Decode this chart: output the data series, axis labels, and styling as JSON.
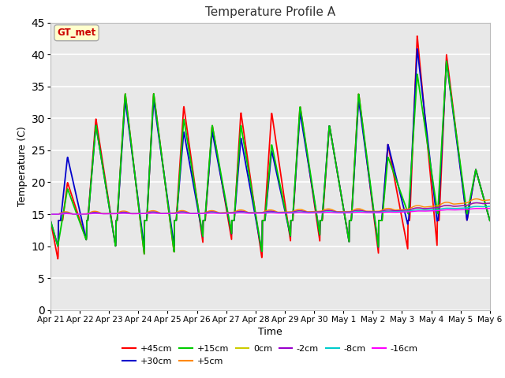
{
  "title": "Temperature Profile A",
  "xlabel": "Time",
  "ylabel": "Temperature (C)",
  "ylim": [
    0,
    45
  ],
  "yticks": [
    0,
    5,
    10,
    15,
    20,
    25,
    30,
    35,
    40,
    45
  ],
  "annotation_text": "GT_met",
  "annotation_color": "#cc0000",
  "annotation_bg": "#ffffcc",
  "annotation_border": "#aaaaaa",
  "fig_bg": "#ffffff",
  "plot_bg": "#e8e8e8",
  "grid_color": "#ffffff",
  "legend_entries": [
    "+45cm",
    "+30cm",
    "+15cm",
    "+5cm",
    "0cm",
    "-2cm",
    "-8cm",
    "-16cm"
  ],
  "legend_colors": [
    "#ff0000",
    "#0000cc",
    "#00cc00",
    "#ff8800",
    "#cccc00",
    "#9900cc",
    "#00cccc",
    "#ff00ff"
  ],
  "n_days": 15,
  "seed": 42
}
